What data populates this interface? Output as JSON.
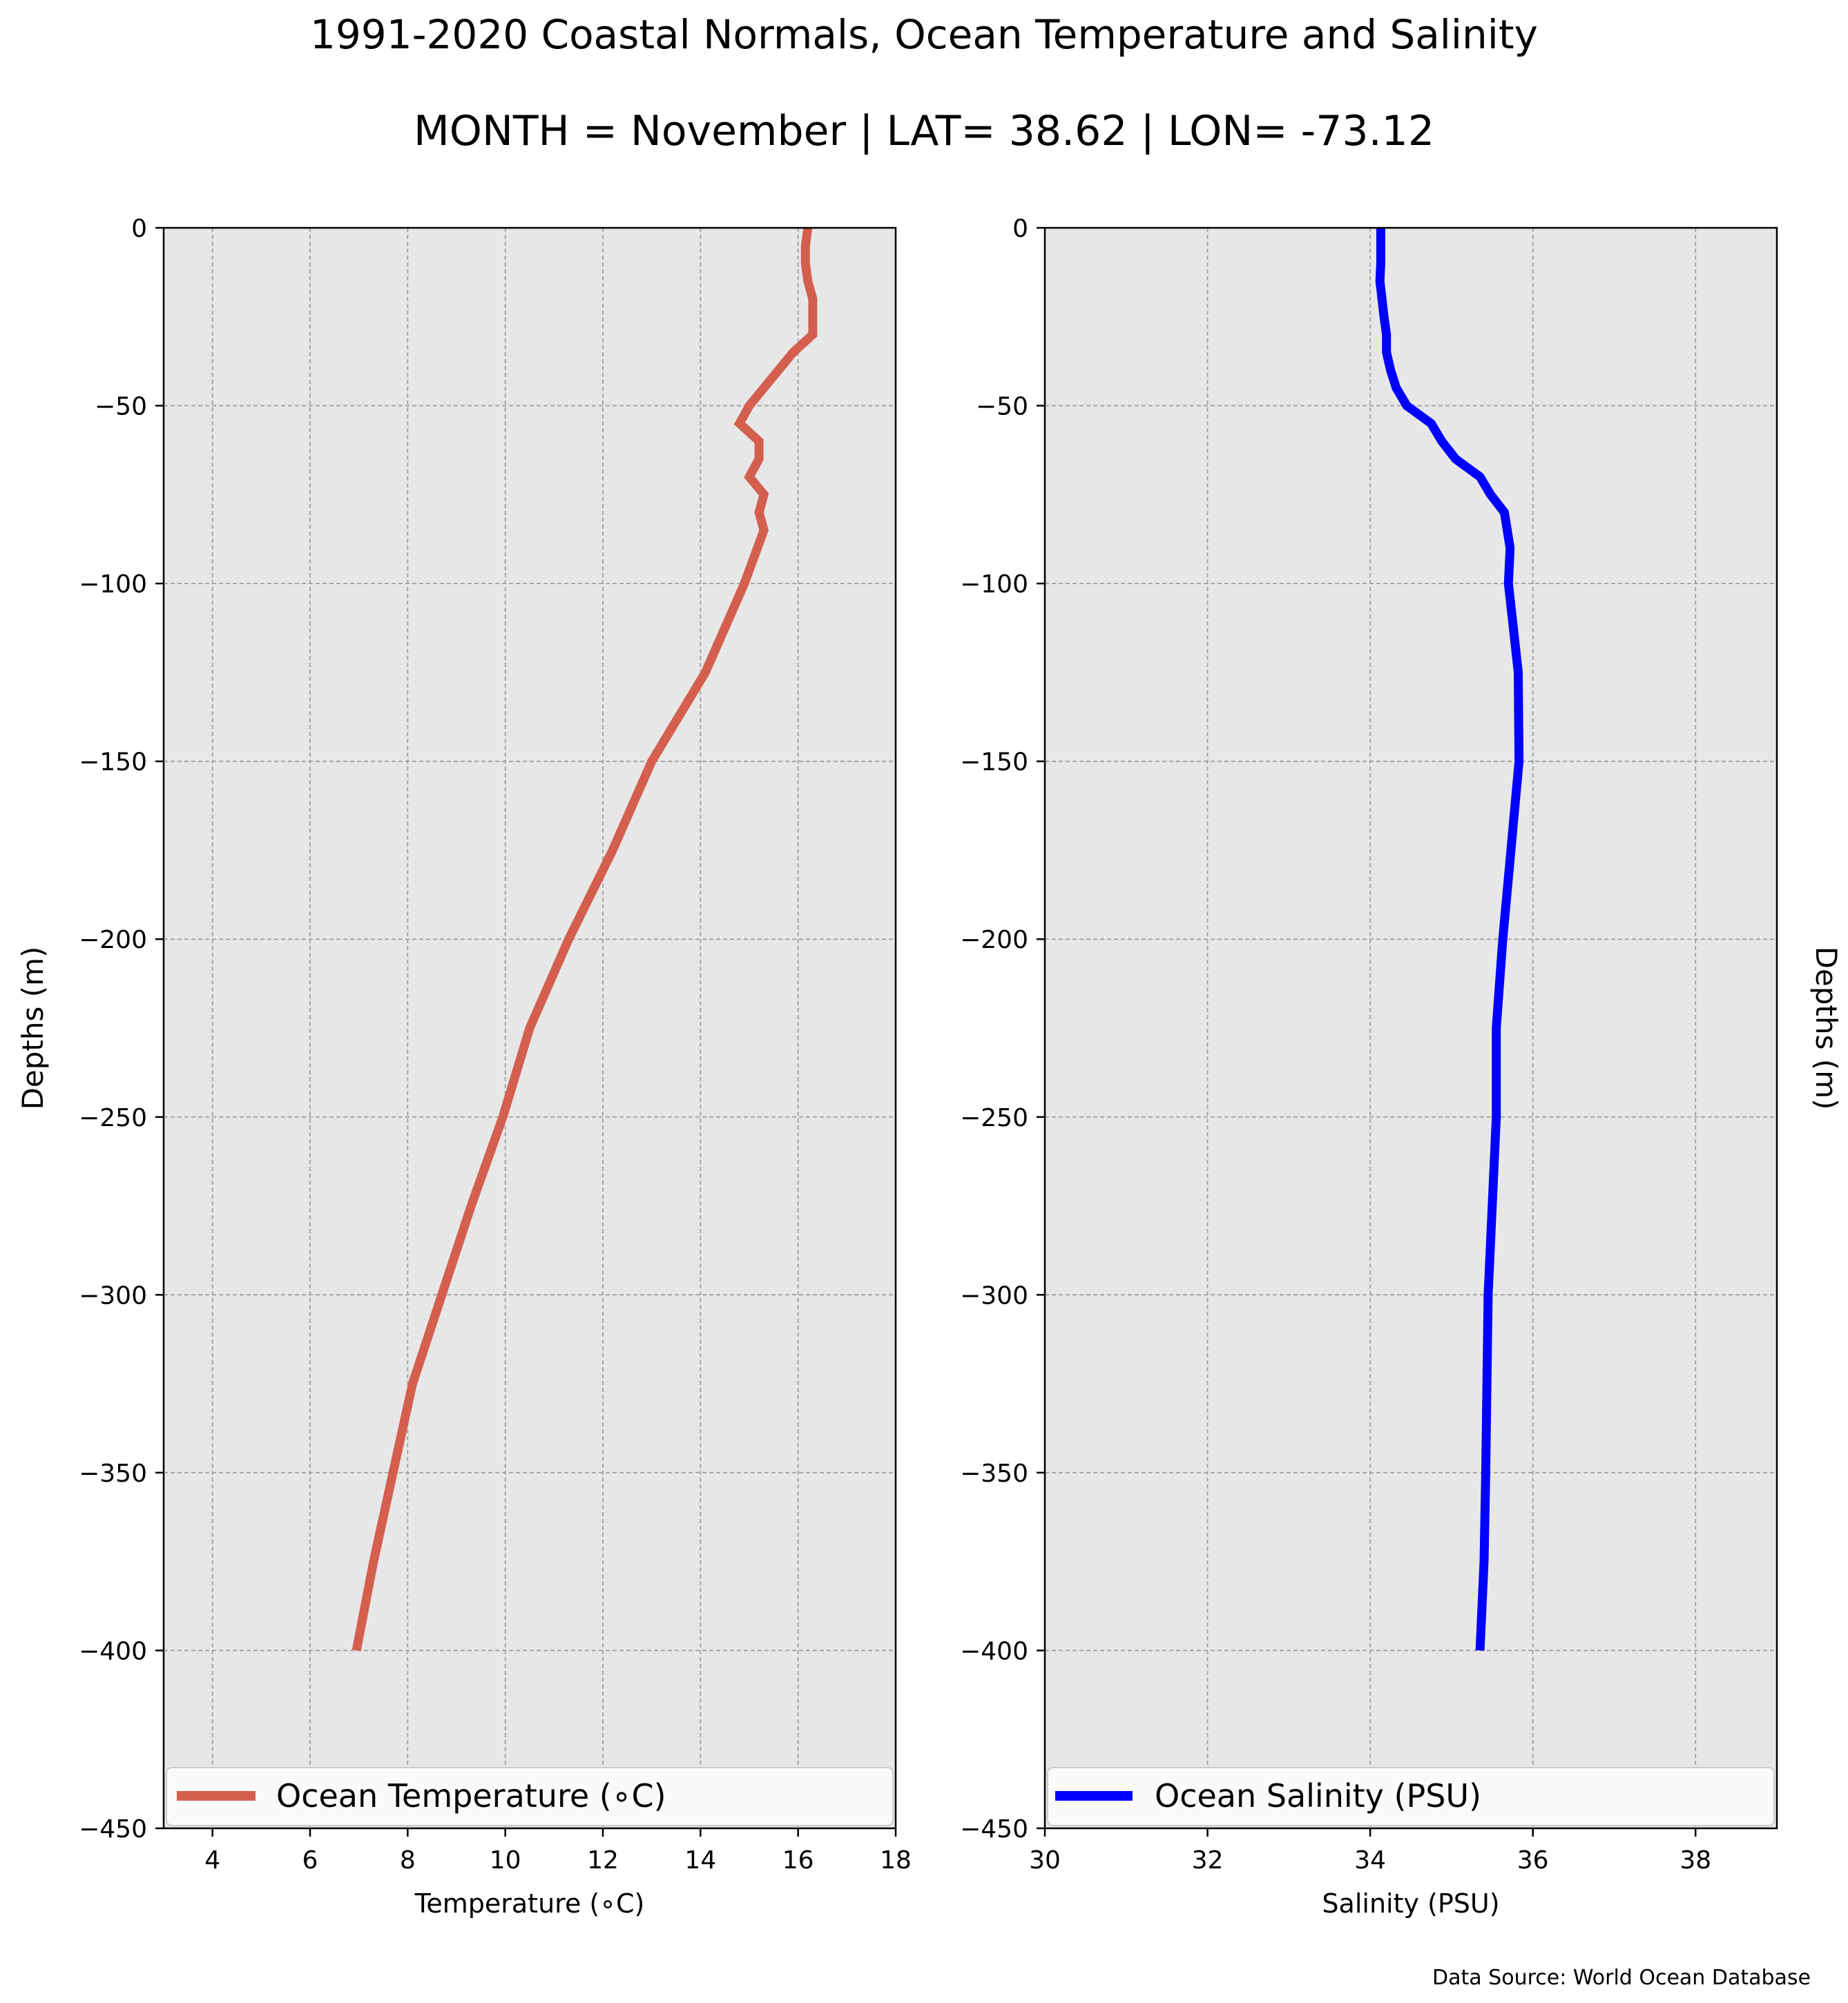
{
  "figure": {
    "title": "1991-2020 Coastal Normals, Ocean Temperature and Salinity",
    "subtitle": "MONTH = November | LAT= 38.62 | LON= -73.12",
    "source": "Data Source: World Ocean Database",
    "left_ylabel": "Depths (m)",
    "right_ylabel": "Depths (m)"
  },
  "chart_data": [
    {
      "type": "line",
      "xlabel": "Temperature (∘C)",
      "ylabel": "Depths (m)",
      "xlim": [
        3,
        18
      ],
      "ylim": [
        -450,
        0
      ],
      "xticks": [
        4,
        6,
        8,
        10,
        12,
        14,
        16,
        18
      ],
      "yticks": [
        0,
        -50,
        -100,
        -150,
        -200,
        -250,
        -300,
        -350,
        -400,
        -450
      ],
      "grid": true,
      "legend_position": "bottom",
      "series": [
        {
          "name": "Ocean Temperature (∘C)",
          "color": "#d45f4e",
          "points": [
            [
              16.2,
              0
            ],
            [
              16.15,
              -5
            ],
            [
              16.15,
              -10
            ],
            [
              16.2,
              -15
            ],
            [
              16.3,
              -20
            ],
            [
              16.3,
              -25
            ],
            [
              16.3,
              -30
            ],
            [
              15.9,
              -35
            ],
            [
              15.6,
              -40
            ],
            [
              15.3,
              -45
            ],
            [
              15.0,
              -50
            ],
            [
              14.8,
              -55
            ],
            [
              15.2,
              -60
            ],
            [
              15.2,
              -65
            ],
            [
              15.0,
              -70
            ],
            [
              15.3,
              -75
            ],
            [
              15.2,
              -80
            ],
            [
              15.3,
              -85
            ],
            [
              14.9,
              -100
            ],
            [
              14.1,
              -125
            ],
            [
              13.0,
              -150
            ],
            [
              12.2,
              -175
            ],
            [
              11.3,
              -200
            ],
            [
              10.5,
              -225
            ],
            [
              9.95,
              -250
            ],
            [
              9.3,
              -275
            ],
            [
              8.7,
              -300
            ],
            [
              8.1,
              -325
            ],
            [
              7.7,
              -350
            ],
            [
              7.3,
              -375
            ],
            [
              6.95,
              -400
            ]
          ]
        }
      ]
    },
    {
      "type": "line",
      "xlabel": "Salinity (PSU)",
      "ylabel": "Depths (m)",
      "xlim": [
        30,
        39
      ],
      "ylim": [
        -450,
        0
      ],
      "xticks": [
        30,
        32,
        34,
        36,
        38
      ],
      "yticks": [
        0,
        -50,
        -100,
        -150,
        -200,
        -250,
        -300,
        -350,
        -400,
        -450
      ],
      "grid": true,
      "legend_position": "bottom",
      "series": [
        {
          "name": "Ocean Salinity (PSU)",
          "color": "#0000ff",
          "points": [
            [
              34.13,
              0
            ],
            [
              34.13,
              -5
            ],
            [
              34.13,
              -10
            ],
            [
              34.12,
              -15
            ],
            [
              34.17,
              -25
            ],
            [
              34.2,
              -30
            ],
            [
              34.2,
              -35
            ],
            [
              34.25,
              -40
            ],
            [
              34.32,
              -45
            ],
            [
              34.45,
              -50
            ],
            [
              34.75,
              -55
            ],
            [
              34.88,
              -60
            ],
            [
              35.05,
              -65
            ],
            [
              35.35,
              -70
            ],
            [
              35.48,
              -75
            ],
            [
              35.65,
              -80
            ],
            [
              35.72,
              -90
            ],
            [
              35.7,
              -100
            ],
            [
              35.82,
              -125
            ],
            [
              35.83,
              -150
            ],
            [
              35.73,
              -175
            ],
            [
              35.63,
              -200
            ],
            [
              35.55,
              -225
            ],
            [
              35.55,
              -250
            ],
            [
              35.5,
              -275
            ],
            [
              35.45,
              -300
            ],
            [
              35.42,
              -350
            ],
            [
              35.4,
              -375
            ],
            [
              35.35,
              -400
            ]
          ]
        }
      ]
    }
  ]
}
